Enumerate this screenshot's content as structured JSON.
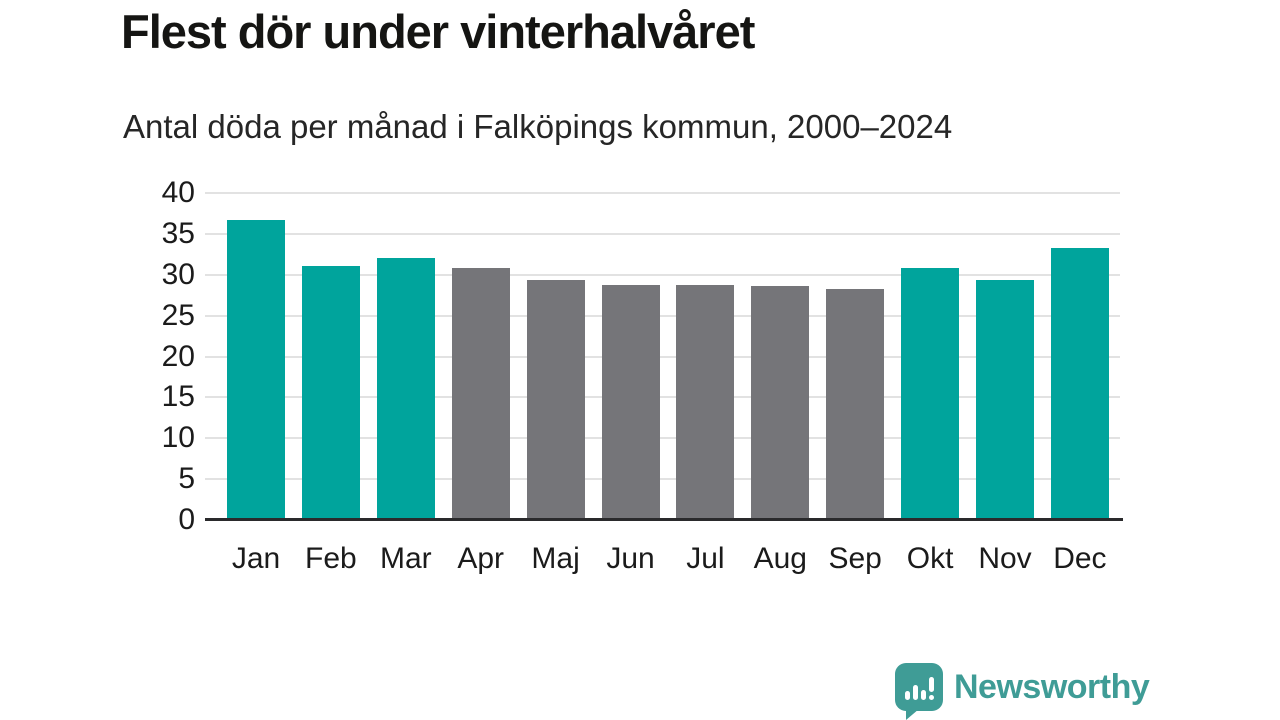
{
  "title": "Flest dör under vinterhalvåret",
  "subtitle": "Antal döda per månad i Falköpings kommun, 2000–2024",
  "brand": {
    "name": "Newsworthy",
    "logo_icon": "bar-chart-speech-bubble-icon",
    "color": "#3f9c96"
  },
  "colors": {
    "highlight_teal": "#00a49c",
    "muted_gray": "#757579",
    "gridline": "#e2e2e2",
    "axis_line": "#2a2a2c",
    "text": "#1b1b1b"
  },
  "chart_data": {
    "type": "bar",
    "title": "Flest dör under vinterhalvåret",
    "subtitle": "Antal döda per månad i Falköpings kommun, 2000–2024",
    "categories": [
      "Jan",
      "Feb",
      "Mar",
      "Apr",
      "Maj",
      "Jun",
      "Jul",
      "Aug",
      "Sep",
      "Okt",
      "Nov",
      "Dec"
    ],
    "values": [
      36.7,
      31.1,
      32.0,
      30.8,
      29.3,
      28.8,
      28.8,
      28.6,
      28.2,
      30.8,
      29.3,
      33.3
    ],
    "highlighted": [
      true,
      true,
      true,
      false,
      false,
      false,
      false,
      false,
      false,
      true,
      true,
      true
    ],
    "highlight_meaning": "winter-half-year months in teal, summer-half-year months in gray",
    "xlabel": "",
    "ylabel": "",
    "ylim": [
      0,
      40
    ],
    "yticks": [
      0,
      5,
      10,
      15,
      20,
      25,
      30,
      35,
      40
    ],
    "grid": true,
    "legend": false
  }
}
